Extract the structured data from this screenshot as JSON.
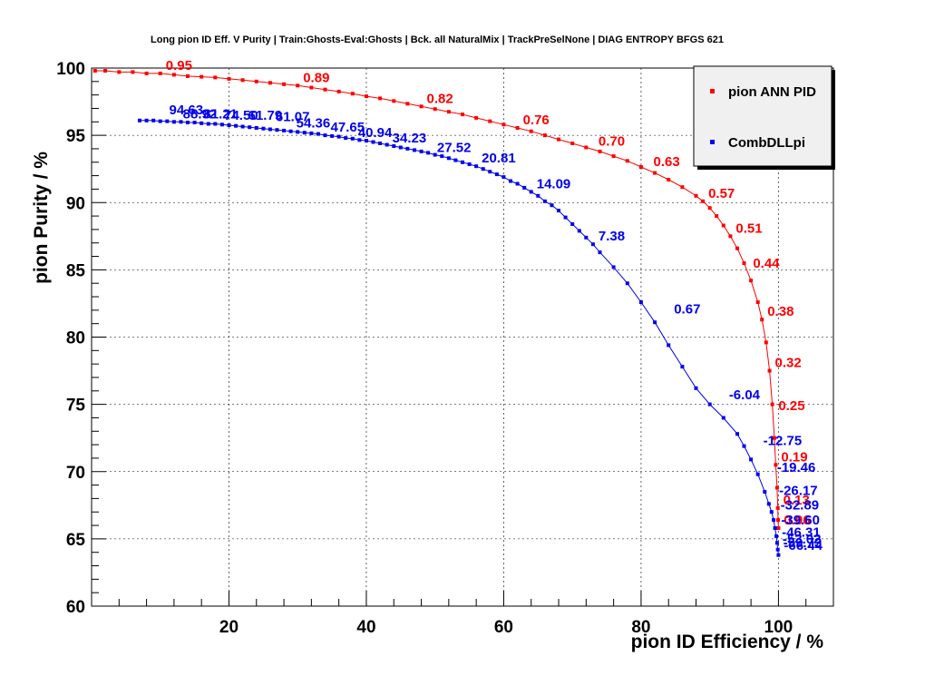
{
  "chart_data": {
    "type": "line",
    "title": "Long pion ID Eff. V Purity | Train:Ghosts-Eval:Ghosts | Bck. all NaturalMix | TrackPreSelNone | DIAG ENTROPY BFGS 621",
    "xlabel": "pion ID Efficiency / %",
    "ylabel": "pion Purity / %",
    "xlim": [
      0,
      108
    ],
    "ylim": [
      60,
      100
    ],
    "xticks": [
      "20",
      "40",
      "60",
      "80",
      "100"
    ],
    "yticks": [
      "60",
      "65",
      "70",
      "75",
      "80",
      "85",
      "90",
      "95",
      "100"
    ],
    "grid": true,
    "legend_position": "top-right",
    "series": [
      {
        "name": "pion ANN PID",
        "color": "#ff0000",
        "points": [
          [
            0.5,
            99.8
          ],
          [
            2,
            99.8
          ],
          [
            4,
            99.7
          ],
          [
            6,
            99.7
          ],
          [
            8,
            99.6
          ],
          [
            10,
            99.6
          ],
          [
            12,
            99.5
          ],
          [
            14,
            99.4
          ],
          [
            16,
            99.35
          ],
          [
            18,
            99.3
          ],
          [
            20,
            99.2
          ],
          [
            22,
            99.1
          ],
          [
            24,
            99.0
          ],
          [
            26,
            98.9
          ],
          [
            28,
            98.8
          ],
          [
            30,
            98.7
          ],
          [
            32,
            98.55
          ],
          [
            34,
            98.4
          ],
          [
            36,
            98.25
          ],
          [
            38,
            98.1
          ],
          [
            40,
            97.9
          ],
          [
            42,
            97.75
          ],
          [
            44,
            97.55
          ],
          [
            46,
            97.35
          ],
          [
            48,
            97.15
          ],
          [
            50,
            96.95
          ],
          [
            52,
            96.75
          ],
          [
            54,
            96.55
          ],
          [
            56,
            96.3
          ],
          [
            58,
            96.05
          ],
          [
            60,
            95.8
          ],
          [
            62,
            95.55
          ],
          [
            64,
            95.3
          ],
          [
            66,
            95.0
          ],
          [
            68,
            94.7
          ],
          [
            70,
            94.4
          ],
          [
            72,
            94.1
          ],
          [
            74,
            93.8
          ],
          [
            76,
            93.45
          ],
          [
            78,
            93.1
          ],
          [
            80,
            92.65
          ],
          [
            82,
            92.2
          ],
          [
            84,
            91.7
          ],
          [
            86,
            91.15
          ],
          [
            88,
            90.5
          ],
          [
            89,
            90.1
          ],
          [
            90,
            89.6
          ],
          [
            91,
            89.0
          ],
          [
            92,
            88.3
          ],
          [
            93,
            87.5
          ],
          [
            94,
            86.6
          ],
          [
            95,
            85.5
          ],
          [
            96,
            84.2
          ],
          [
            97,
            82.6
          ],
          [
            97.6,
            81.3
          ],
          [
            98.2,
            79.6
          ],
          [
            98.7,
            77.5
          ],
          [
            99.1,
            75.0
          ],
          [
            99.4,
            72.5
          ],
          [
            99.6,
            70.5
          ],
          [
            99.8,
            68.8
          ],
          [
            99.9,
            67.3
          ],
          [
            99.95,
            66.4
          ],
          [
            100,
            65.8
          ]
        ],
        "labels": [
          {
            "x": 10,
            "y": 99.6,
            "text": "0.95"
          },
          {
            "x": 30,
            "y": 98.7,
            "text": "0.89"
          },
          {
            "x": 48,
            "y": 97.15,
            "text": "0.82"
          },
          {
            "x": 62,
            "y": 95.55,
            "text": "0.76"
          },
          {
            "x": 73,
            "y": 93.95,
            "text": "0.70"
          },
          {
            "x": 81,
            "y": 92.45,
            "text": "0.63"
          },
          {
            "x": 89,
            "y": 90.1,
            "text": "0.57"
          },
          {
            "x": 93,
            "y": 87.5,
            "text": "0.51"
          },
          {
            "x": 95.5,
            "y": 84.9,
            "text": "0.44"
          },
          {
            "x": 97.6,
            "y": 81.3,
            "text": "0.38"
          },
          {
            "x": 98.7,
            "y": 77.5,
            "text": "0.32"
          },
          {
            "x": 99.2,
            "y": 74.3,
            "text": "0.25"
          },
          {
            "x": 99.6,
            "y": 70.5,
            "text": "0.19"
          },
          {
            "x": 99.9,
            "y": 67.3,
            "text": "0.13"
          },
          {
            "x": 100,
            "y": 65.8,
            "text": "0.06"
          }
        ]
      },
      {
        "name": "CombDLLpi",
        "color": "#0000ee",
        "points": [
          [
            7,
            96.1
          ],
          [
            8,
            96.1
          ],
          [
            9,
            96.1
          ],
          [
            10,
            96.05
          ],
          [
            11,
            96.05
          ],
          [
            12,
            96.0
          ],
          [
            13,
            96.0
          ],
          [
            14,
            95.95
          ],
          [
            15,
            95.95
          ],
          [
            16,
            95.9
          ],
          [
            17,
            95.85
          ],
          [
            18,
            95.85
          ],
          [
            19,
            95.8
          ],
          [
            20,
            95.75
          ],
          [
            21,
            95.7
          ],
          [
            22,
            95.65
          ],
          [
            23,
            95.6
          ],
          [
            24,
            95.55
          ],
          [
            25,
            95.5
          ],
          [
            26,
            95.45
          ],
          [
            27,
            95.4
          ],
          [
            28,
            95.35
          ],
          [
            29,
            95.3
          ],
          [
            30,
            95.25
          ],
          [
            31,
            95.2
          ],
          [
            32,
            95.15
          ],
          [
            33,
            95.1
          ],
          [
            34,
            95.0
          ],
          [
            35,
            94.95
          ],
          [
            36,
            94.9
          ],
          [
            37,
            94.8
          ],
          [
            38,
            94.75
          ],
          [
            39,
            94.65
          ],
          [
            40,
            94.6
          ],
          [
            41,
            94.5
          ],
          [
            42,
            94.4
          ],
          [
            43,
            94.3
          ],
          [
            44,
            94.2
          ],
          [
            45,
            94.1
          ],
          [
            46,
            94.0
          ],
          [
            47,
            93.9
          ],
          [
            48,
            93.8
          ],
          [
            49,
            93.7
          ],
          [
            50,
            93.55
          ],
          [
            51,
            93.45
          ],
          [
            52,
            93.3
          ],
          [
            53,
            93.15
          ],
          [
            54,
            93.0
          ],
          [
            55,
            92.85
          ],
          [
            56,
            92.7
          ],
          [
            57,
            92.5
          ],
          [
            58,
            92.3
          ],
          [
            59,
            92.1
          ],
          [
            60,
            91.9
          ],
          [
            61,
            91.6
          ],
          [
            62,
            91.4
          ],
          [
            63,
            91.1
          ],
          [
            64,
            90.8
          ],
          [
            65,
            90.5
          ],
          [
            66,
            90.1
          ],
          [
            67,
            89.8
          ],
          [
            68,
            89.4
          ],
          [
            69,
            88.9
          ],
          [
            70,
            88.4
          ],
          [
            71,
            87.9
          ],
          [
            72,
            87.4
          ],
          [
            73,
            86.9
          ],
          [
            74,
            86.3
          ],
          [
            76,
            85.2
          ],
          [
            78,
            84.0
          ],
          [
            80,
            82.6
          ],
          [
            82,
            81.1
          ],
          [
            84,
            79.4
          ],
          [
            86,
            77.8
          ],
          [
            88,
            76.2
          ],
          [
            90,
            75.0
          ],
          [
            92,
            74.0
          ],
          [
            94,
            72.8
          ],
          [
            95,
            71.9
          ],
          [
            96,
            70.9
          ],
          [
            97,
            69.8
          ],
          [
            98,
            68.5
          ],
          [
            98.6,
            67.6
          ],
          [
            99.0,
            67.0
          ],
          [
            99.3,
            66.4
          ],
          [
            99.5,
            65.8
          ],
          [
            99.7,
            65.2
          ],
          [
            99.8,
            64.7
          ],
          [
            99.9,
            64.2
          ],
          [
            100,
            63.8
          ]
        ],
        "labels": [
          {
            "x": 10.5,
            "y": 96.3,
            "text": "94.63"
          },
          {
            "x": 12.5,
            "y": 96.0,
            "text": "88.92"
          },
          {
            "x": 15.5,
            "y": 96.0,
            "text": "81.21"
          },
          {
            "x": 18.5,
            "y": 95.9,
            "text": "74.50"
          },
          {
            "x": 22,
            "y": 95.9,
            "text": "61.79"
          },
          {
            "x": 26,
            "y": 95.8,
            "text": "61.07"
          },
          {
            "x": 29,
            "y": 95.3,
            "text": "54.36"
          },
          {
            "x": 34,
            "y": 95.0,
            "text": "47.65"
          },
          {
            "x": 38,
            "y": 94.6,
            "text": "40.94"
          },
          {
            "x": 43,
            "y": 94.2,
            "text": "34.23"
          },
          {
            "x": 49.5,
            "y": 93.5,
            "text": "27.52"
          },
          {
            "x": 56,
            "y": 92.7,
            "text": "20.81"
          },
          {
            "x": 64,
            "y": 90.8,
            "text": "14.09"
          },
          {
            "x": 73,
            "y": 86.9,
            "text": "7.38"
          },
          {
            "x": 84,
            "y": 81.5,
            "text": "0.67"
          },
          {
            "x": 92,
            "y": 75.1,
            "text": "-6.04"
          },
          {
            "x": 97,
            "y": 71.7,
            "text": "-12.75"
          },
          {
            "x": 99,
            "y": 69.7,
            "text": "-19.46"
          },
          {
            "x": 99.3,
            "y": 68.0,
            "text": "-26.17"
          },
          {
            "x": 99.5,
            "y": 66.9,
            "text": "-32.89"
          },
          {
            "x": 99.6,
            "y": 65.8,
            "text": "-39.60"
          },
          {
            "x": 99.7,
            "y": 64.9,
            "text": "-46.31"
          },
          {
            "x": 99.8,
            "y": 64.4,
            "text": "-53.02"
          },
          {
            "x": 99.9,
            "y": 64.1,
            "text": "-59.73"
          },
          {
            "x": 100,
            "y": 63.9,
            "text": "-66.44"
          }
        ]
      }
    ]
  }
}
